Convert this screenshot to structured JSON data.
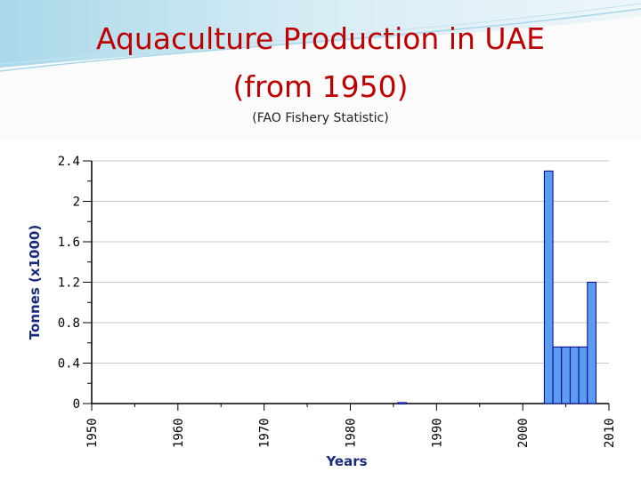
{
  "slide": {
    "title_line_1": "Aquaculture Production in UAE",
    "title_line_2": "(from 1950)",
    "subtitle": "(FAO Fishery Statistic)",
    "title_color": "#c00000",
    "swoosh_color": "#7ec8e3"
  },
  "chart_data": {
    "type": "bar",
    "xlabel": "Years",
    "ylabel": "Tonnes (x1000)",
    "xlim": [
      1950,
      2010
    ],
    "ylim": [
      0,
      2.4
    ],
    "x_ticks": [
      "1950",
      "1960",
      "1970",
      "1980",
      "1990",
      "2000",
      "2010"
    ],
    "y_ticks": [
      "0",
      "0.4",
      "0.8",
      "1.2",
      "1.6",
      "2",
      "2.4"
    ],
    "grid": true,
    "bar_color": "#5b9bf0",
    "bar_edge_color": "#00008b",
    "years": [
      1986,
      2003,
      2004,
      2005,
      2006,
      2007,
      2008
    ],
    "values": [
      0.01,
      2.3,
      0.56,
      0.56,
      0.56,
      0.56,
      1.2
    ]
  }
}
